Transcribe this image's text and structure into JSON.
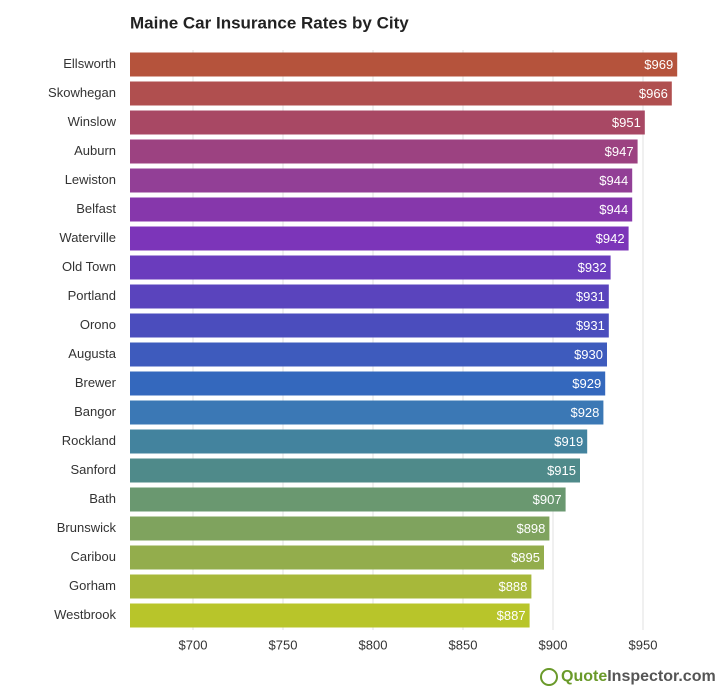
{
  "chart_data": {
    "type": "hbar",
    "title": "Maine Car Insurance Rates by City",
    "categories": [
      "Ellsworth",
      "Skowhegan",
      "Winslow",
      "Auburn",
      "Lewiston",
      "Belfast",
      "Waterville",
      "Old Town",
      "Portland",
      "Orono",
      "Augusta",
      "Brewer",
      "Bangor",
      "Rockland",
      "Sanford",
      "Bath",
      "Brunswick",
      "Caribou",
      "Gorham",
      "Westbrook"
    ],
    "values": [
      969,
      966,
      951,
      947,
      944,
      944,
      942,
      932,
      931,
      931,
      930,
      929,
      928,
      919,
      915,
      907,
      898,
      895,
      888,
      887
    ],
    "value_labels": [
      "$969",
      "$966",
      "$951",
      "$947",
      "$944",
      "$944",
      "$942",
      "$932",
      "$931",
      "$931",
      "$930",
      "$929",
      "$928",
      "$919",
      "$915",
      "$907",
      "$898",
      "$895",
      "$888",
      "$887"
    ],
    "colors": [
      "#b5533c",
      "#b04f4f",
      "#a84864",
      "#9c4281",
      "#923f96",
      "#8637ab",
      "#7c35b9",
      "#6a3cbd",
      "#5a44bd",
      "#4b4dbd",
      "#3e5bbd",
      "#3468bd",
      "#3b78b5",
      "#43839e",
      "#4f8a8a",
      "#6a9870",
      "#7fa35e",
      "#93ad4c",
      "#a7b83a",
      "#b8c52a"
    ],
    "xlim": [
      665,
      975
    ],
    "xticks": [
      {
        "value": 700,
        "label": "$700"
      },
      {
        "value": 750,
        "label": "$750"
      },
      {
        "value": 800,
        "label": "$800"
      },
      {
        "value": 850,
        "label": "$850"
      },
      {
        "value": 900,
        "label": "$900"
      },
      {
        "value": 950,
        "label": "$950"
      }
    ],
    "grid": true,
    "watermark": {
      "brand": "Quote",
      "rest": "Inspector.com"
    }
  }
}
